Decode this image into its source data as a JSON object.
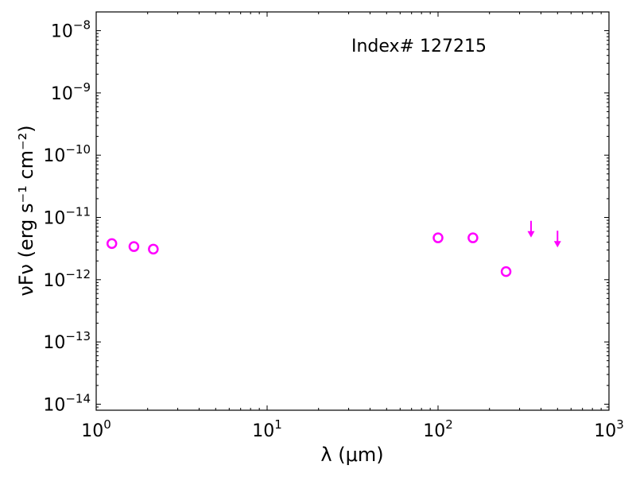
{
  "chart_data": {
    "type": "scatter",
    "title": "",
    "annotation": "Index# 127215",
    "xlabel": "λ (μm)",
    "ylabel": "νFν (erg s⁻¹ cm⁻²)",
    "x_scale": "log",
    "y_scale": "log",
    "xlim": [
      1,
      1000
    ],
    "ylim": [
      8e-15,
      2e-08
    ],
    "grid": false,
    "marker_color": "#ff00ff",
    "x_ticks": [
      {
        "base": "10",
        "exp": "0",
        "value": 1
      },
      {
        "base": "10",
        "exp": "1",
        "value": 10
      },
      {
        "base": "10",
        "exp": "2",
        "value": 100
      },
      {
        "base": "10",
        "exp": "3",
        "value": 1000
      }
    ],
    "y_ticks": [
      {
        "base": "10",
        "exp": "−14",
        "value": 1e-14
      },
      {
        "base": "10",
        "exp": "−13",
        "value": 1e-13
      },
      {
        "base": "10",
        "exp": "−12",
        "value": 1e-12
      },
      {
        "base": "10",
        "exp": "−11",
        "value": 1e-11
      },
      {
        "base": "10",
        "exp": "−10",
        "value": 1e-10
      },
      {
        "base": "10",
        "exp": "−9",
        "value": 1e-09
      },
      {
        "base": "10",
        "exp": "−8",
        "value": 1e-08
      }
    ],
    "detections": [
      {
        "x": 1.235,
        "y": 3.8e-12
      },
      {
        "x": 1.662,
        "y": 3.4e-12
      },
      {
        "x": 2.159,
        "y": 3.1e-12
      },
      {
        "x": 100,
        "y": 4.7e-12
      },
      {
        "x": 160,
        "y": 4.7e-12
      },
      {
        "x": 250,
        "y": 1.35e-12
      }
    ],
    "upper_limits": [
      {
        "x": 350,
        "y": 6.2e-12
      },
      {
        "x": 500,
        "y": 4.3e-12
      }
    ]
  }
}
